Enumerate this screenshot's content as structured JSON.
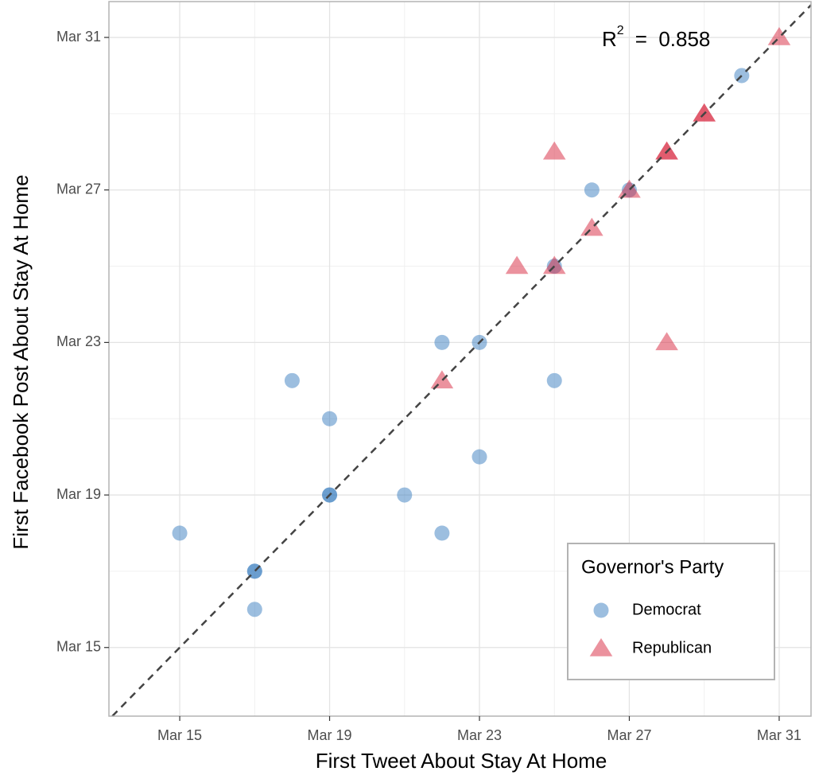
{
  "chart_data": {
    "type": "scatter",
    "x_label": "First Tweet About Stay At Home",
    "y_label": "First Facebook Post About Stay At Home",
    "xlim": [
      13.11,
      31.85
    ],
    "ylim": [
      13.2,
      31.94
    ],
    "xticks": [
      {
        "value": 15,
        "label": "Mar 15"
      },
      {
        "value": 19,
        "label": "Mar 19"
      },
      {
        "value": 23,
        "label": "Mar 23"
      },
      {
        "value": 27,
        "label": "Mar 27"
      },
      {
        "value": 31,
        "label": "Mar 31"
      }
    ],
    "yticks": [
      {
        "value": 15,
        "label": "Mar 15"
      },
      {
        "value": 19,
        "label": "Mar 19"
      },
      {
        "value": 23,
        "label": "Mar 23"
      },
      {
        "value": 27,
        "label": "Mar 27"
      },
      {
        "value": 31,
        "label": "Mar 31"
      }
    ],
    "grid": true,
    "minor_grid": true,
    "reference_line": "y=x",
    "annotation": {
      "main": "R",
      "superscript": "2",
      "rest": "=  0.858"
    },
    "legend_title": "Governor's Party",
    "legend_position": "lower right",
    "series": [
      {
        "name": "Democrat",
        "color": "#3a7ebf",
        "marker": "circle",
        "x": [
          15,
          17,
          17,
          17,
          18,
          19,
          19,
          19,
          21,
          22,
          22,
          23,
          23,
          25,
          25,
          26,
          27,
          30
        ],
        "values": [
          18,
          17,
          17,
          16,
          22,
          21,
          19,
          19,
          19,
          23,
          18,
          23,
          20,
          22,
          25,
          27,
          27,
          30
        ]
      },
      {
        "name": "Republican",
        "color": "#d7263d",
        "marker": "triangle",
        "x": [
          22,
          24,
          25,
          25,
          26,
          27,
          28,
          28,
          28,
          29,
          29,
          31
        ],
        "values": [
          22,
          25,
          28,
          25,
          26,
          27,
          28,
          28,
          23,
          29,
          29,
          31
        ]
      }
    ]
  }
}
